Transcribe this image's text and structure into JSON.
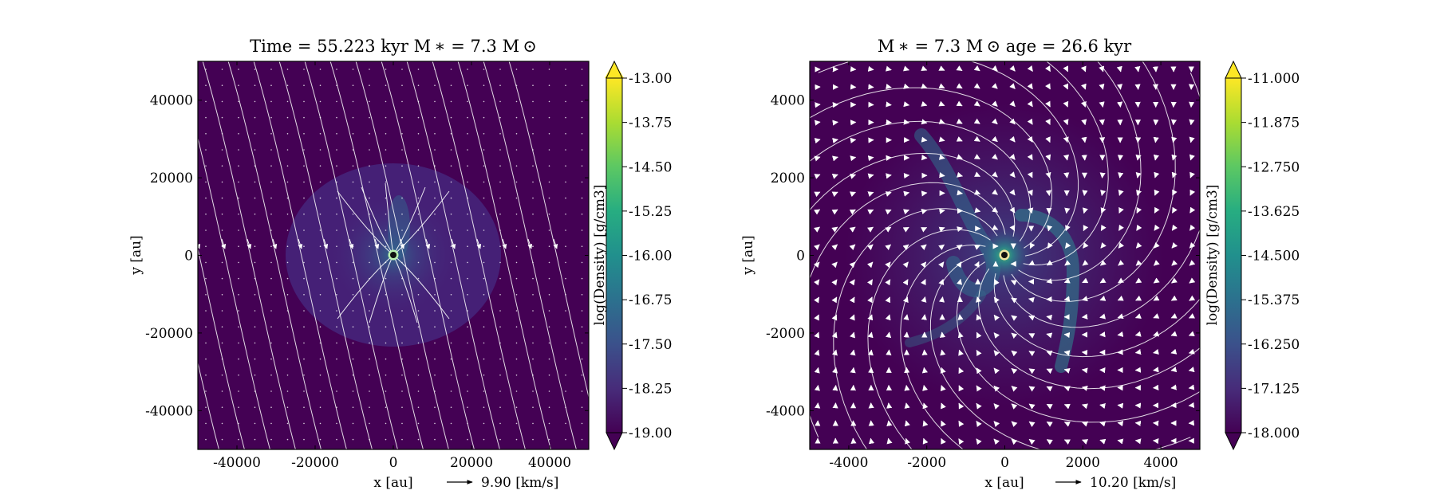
{
  "chart_data": [
    {
      "type": "heatmap",
      "title": "Time = 55.223 kyr    M ∗ = 7.3 M ⊙",
      "xlabel": "x [au]",
      "ylabel": "y [au]",
      "xlim": [
        -50000,
        50000
      ],
      "ylim": [
        -50000,
        50000
      ],
      "xticks": [
        -40000,
        -20000,
        0,
        20000,
        40000
      ],
      "yticks": [
        -40000,
        -20000,
        0,
        20000,
        40000
      ],
      "xtick_labels": [
        "-40000",
        "-20000",
        "0",
        "20000",
        "40000"
      ],
      "ytick_labels": [
        "-40000",
        "-20000",
        "0",
        "20000",
        "40000"
      ],
      "colorbar": {
        "label": "log(Density) [g/cm3]",
        "range": [
          -19.0,
          -13.0
        ],
        "ticks": [
          -13.0,
          -13.75,
          -14.5,
          -15.25,
          -16.0,
          -16.75,
          -17.5,
          -18.25,
          -19.0
        ],
        "tick_labels": [
          "-13.00",
          "-13.75",
          "-14.50",
          "-15.25",
          "-16.00",
          "-16.75",
          "-17.50",
          "-18.25",
          "-19.00"
        ],
        "extend": "both",
        "colormap": "viridis"
      },
      "quiver_key": "9.90 [km/s]",
      "star_position": [
        0,
        0
      ],
      "grid": false
    },
    {
      "type": "heatmap",
      "title": "M ∗ = 7.3 M ⊙          age = 26.6 kyr",
      "xlabel": "x [au]",
      "ylabel": "y [au]",
      "xlim": [
        -5000,
        5000
      ],
      "ylim": [
        -5000,
        5000
      ],
      "xticks": [
        -4000,
        -2000,
        0,
        2000,
        4000
      ],
      "yticks": [
        -4000,
        -2000,
        0,
        2000,
        4000
      ],
      "xtick_labels": [
        "-4000",
        "-2000",
        "0",
        "2000",
        "4000"
      ],
      "ytick_labels": [
        "-4000",
        "-2000",
        "0",
        "2000",
        "4000"
      ],
      "colorbar": {
        "label": "log(Density) [g/cm3]",
        "range": [
          -18.0,
          -11.0
        ],
        "ticks": [
          -11.0,
          -11.875,
          -12.75,
          -13.625,
          -14.5,
          -15.375,
          -16.25,
          -17.125,
          -18.0
        ],
        "tick_labels": [
          "-11.000",
          "-11.875",
          "-12.750",
          "-13.625",
          "-14.500",
          "-15.375",
          "-16.250",
          "-17.125",
          "-18.000"
        ],
        "extend": "both",
        "colormap": "viridis"
      },
      "quiver_key": "10.20 [km/s]",
      "star_position": [
        0,
        0
      ],
      "grid": false
    }
  ],
  "colors": {
    "background_min": "#440154",
    "colormap_stops": [
      "#440154",
      "#472c7a",
      "#3b518b",
      "#2c718e",
      "#21908d",
      "#27ad81",
      "#5cc863",
      "#aadc32",
      "#fde725"
    ],
    "streamline": "#ffffff",
    "star_fill": "#111111",
    "star_ring": "#b8f0b0"
  }
}
